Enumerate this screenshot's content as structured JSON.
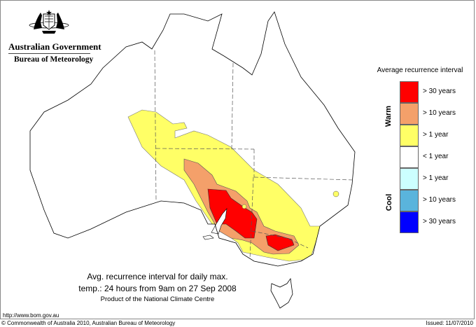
{
  "header": {
    "agency_line1": "Australian Government",
    "agency_line2": "Bureau of Meteorology",
    "crest_icon": "commonwealth-coat-of-arms-icon"
  },
  "legend": {
    "title": "Average recurrence interval",
    "warm_label": "Warm",
    "cool_label": "Cool",
    "items": [
      {
        "label": "> 30 years",
        "color": "#ff0000",
        "group": "Warm"
      },
      {
        "label": "> 10 years",
        "color": "#f4a06a",
        "group": "Warm"
      },
      {
        "label": "> 1 year",
        "color": "#ffff66",
        "group": "Warm"
      },
      {
        "label": "< 1 year",
        "color": "#ffffff",
        "group": ""
      },
      {
        "label": "> 1 year",
        "color": "#ccffff",
        "group": "Cool"
      },
      {
        "label": "> 10 years",
        "color": "#5ab4dc",
        "group": "Cool"
      },
      {
        "label": "> 30 years",
        "color": "#0000ff",
        "group": "Cool"
      }
    ]
  },
  "caption": {
    "line1": "Avg. recurrence interval for daily max.",
    "line2": "temp.: 24 hours from 9am on 27 Sep 2008",
    "line3": "Product of the National Climate Centre"
  },
  "footer": {
    "url": "http://www.bom.gov.au",
    "copyright": "© Commonwealth of Australia 2010, Australian Bureau of Meteorology",
    "issued": "Issued: 11/07/2010"
  }
}
